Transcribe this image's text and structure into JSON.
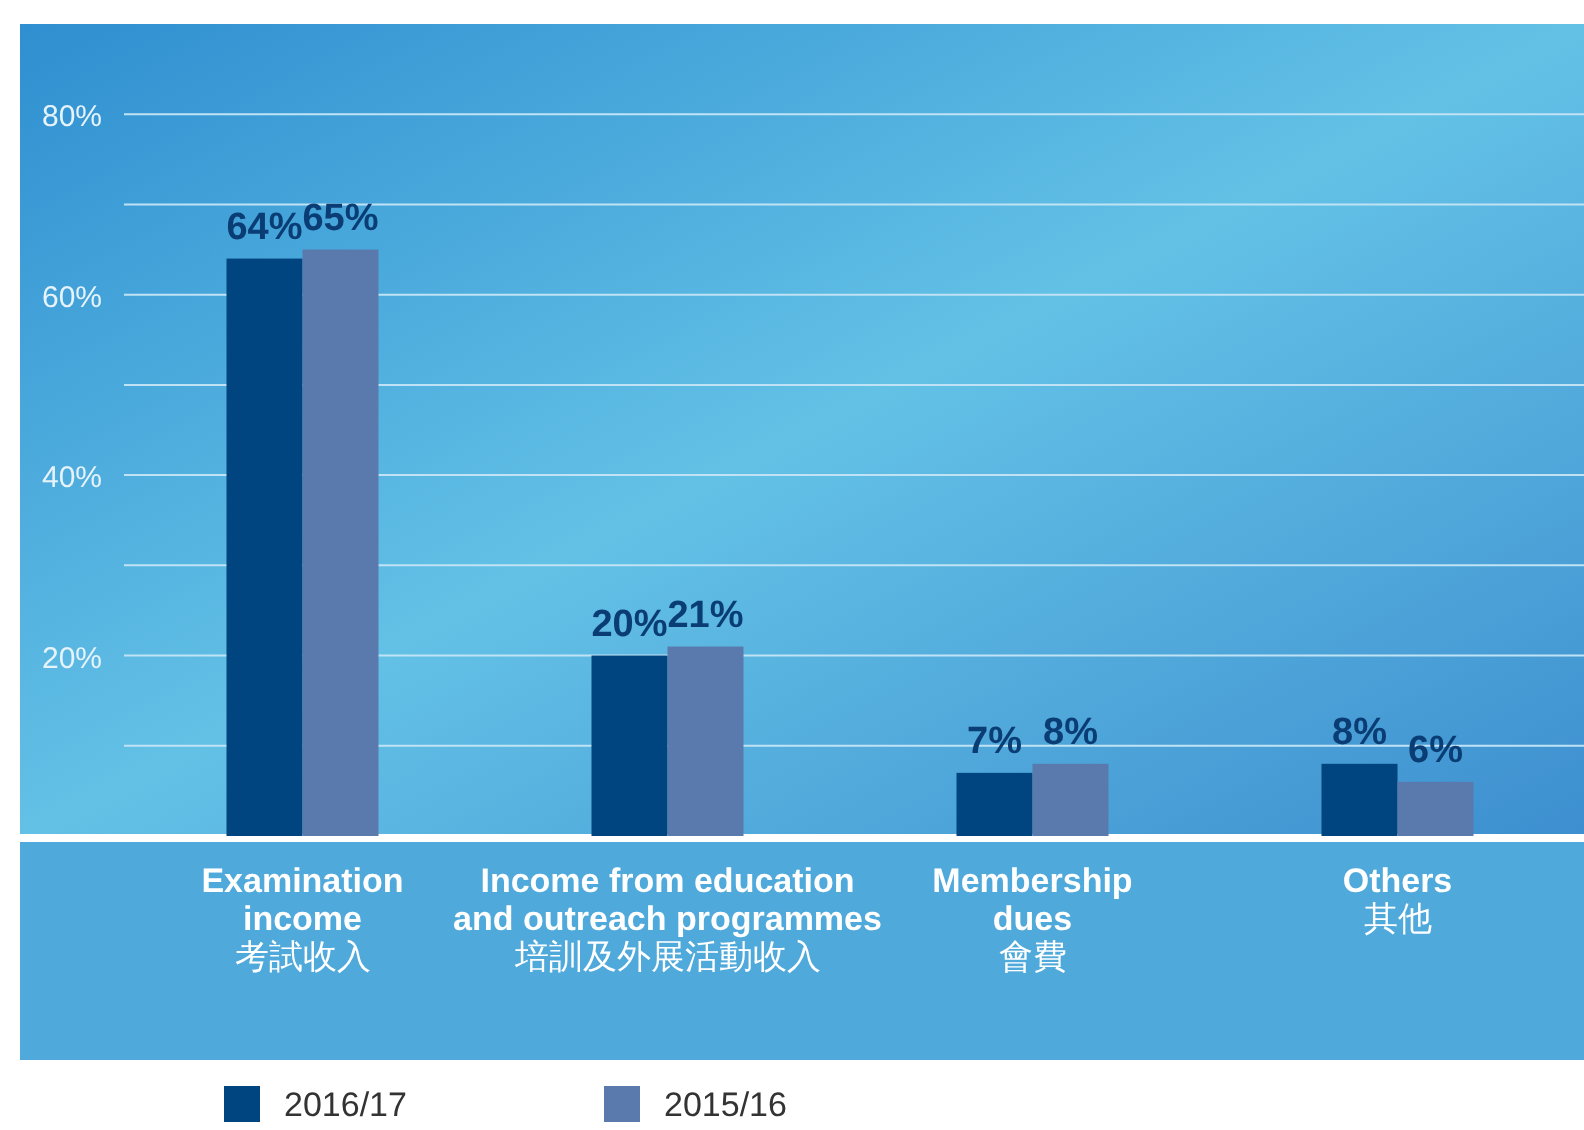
{
  "chart_data": {
    "type": "bar",
    "categories": [
      "**Examination income** 考試收入",
      "**Income from education and outreach programmes** 培訓及外展活動收入",
      "**Membership dues** 會費",
      "**Others** 其他"
    ],
    "series": [
      {
        "name": "2016/17",
        "color": "#00457f",
        "values": [
          64,
          20,
          7,
          8
        ],
        "value_labels": [
          "64%",
          "20%",
          "7%",
          "8%"
        ]
      },
      {
        "name": "2015/16",
        "color": "#5a7aae",
        "values": [
          65,
          21,
          8,
          6
        ],
        "value_labels": [
          "65%",
          "21%",
          "8%",
          "6%"
        ]
      }
    ],
    "ylim": [
      0,
      90
    ],
    "yticks": [
      {
        "value": 10,
        "label": null
      },
      {
        "value": 20,
        "label": "20%"
      },
      {
        "value": 30,
        "label": null
      },
      {
        "value": 40,
        "label": "40%"
      },
      {
        "value": 50,
        "label": null
      },
      {
        "value": 60,
        "label": "60%"
      },
      {
        "value": 70,
        "label": null
      },
      {
        "value": 80,
        "label": "80%"
      }
    ],
    "grid": "y",
    "legend": "bottom"
  }
}
